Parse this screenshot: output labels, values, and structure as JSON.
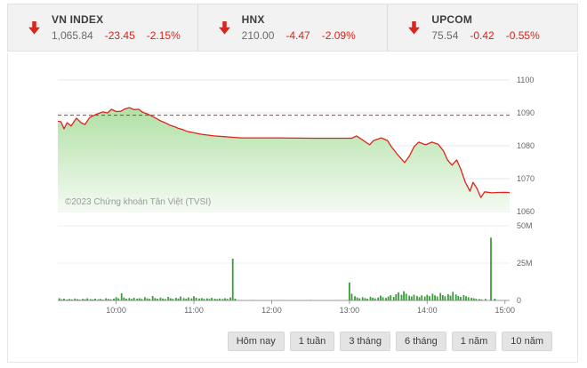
{
  "tickers": [
    {
      "name": "VN INDEX",
      "price": "1,065.84",
      "change": "-23.45",
      "percent": "-2.15%"
    },
    {
      "name": "HNX",
      "price": "210.00",
      "change": "-4.47",
      "percent": "-2.09%"
    },
    {
      "name": "UPCOM",
      "price": "75.54",
      "change": "-0.42",
      "percent": "-0.55%"
    }
  ],
  "colors": {
    "arrow": "#d9251c",
    "negative_text": "#de2118",
    "price_line": "#e0231c",
    "volume_bar": "#3a9e3a",
    "header_bg": "#f2f2f3"
  },
  "timeframes": [
    "Hôm nay",
    "1 tuần",
    "3 tháng",
    "6 tháng",
    "1 năm",
    "10 năm"
  ],
  "chart_data": {
    "type": "area",
    "title": "",
    "watermark": "©2023 Chứng khoán Tân Việt (TVSI)",
    "xlim": [
      9.25,
      15.06
    ],
    "xticks": [
      {
        "t": 10,
        "label": "10:00"
      },
      {
        "t": 11,
        "label": "11:00"
      },
      {
        "t": 12,
        "label": "12:00"
      },
      {
        "t": 13,
        "label": "13:00"
      },
      {
        "t": 14,
        "label": "14:00"
      },
      {
        "t": 15,
        "label": "15:00"
      }
    ],
    "price": {
      "name": "VN INDEX",
      "prev_close": 1089.29,
      "last": 1065.84,
      "ylim": [
        1060,
        1100
      ],
      "yticks": [
        1100,
        1090,
        1080,
        1070,
        1060
      ],
      "line_color": "#e0231c",
      "fill_top": "#b0e0a6",
      "fill_bottom": "#f4fbf2",
      "points": [
        [
          9.25,
          1087.5
        ],
        [
          9.29,
          1087.3
        ],
        [
          9.33,
          1085.2
        ],
        [
          9.37,
          1087.0
        ],
        [
          9.42,
          1086.0
        ],
        [
          9.49,
          1088.4
        ],
        [
          9.55,
          1087.0
        ],
        [
          9.6,
          1086.5
        ],
        [
          9.66,
          1088.6
        ],
        [
          9.71,
          1089.2
        ],
        [
          9.77,
          1089.8
        ],
        [
          9.83,
          1090.3
        ],
        [
          9.89,
          1090.0
        ],
        [
          9.94,
          1091.1
        ],
        [
          10.0,
          1090.4
        ],
        [
          10.06,
          1090.5
        ],
        [
          10.11,
          1091.2
        ],
        [
          10.17,
          1091.6
        ],
        [
          10.23,
          1091.0
        ],
        [
          10.29,
          1091.1
        ],
        [
          10.34,
          1090.2
        ],
        [
          10.4,
          1089.7
        ],
        [
          10.46,
          1089.0
        ],
        [
          10.51,
          1088.4
        ],
        [
          10.57,
          1087.6
        ],
        [
          10.63,
          1087.0
        ],
        [
          10.69,
          1086.3
        ],
        [
          10.74,
          1085.9
        ],
        [
          10.8,
          1085.3
        ],
        [
          10.86,
          1084.9
        ],
        [
          10.91,
          1084.4
        ],
        [
          10.97,
          1084.1
        ],
        [
          11.09,
          1083.5
        ],
        [
          11.26,
          1083.0
        ],
        [
          11.43,
          1082.7
        ],
        [
          11.6,
          1082.4
        ],
        [
          12.06,
          1082.4
        ],
        [
          12.51,
          1082.3
        ],
        [
          13.03,
          1082.3
        ],
        [
          13.09,
          1083.0
        ],
        [
          13.18,
          1081.6
        ],
        [
          13.26,
          1080.3
        ],
        [
          13.31,
          1081.6
        ],
        [
          13.41,
          1082.4
        ],
        [
          13.49,
          1081.6
        ],
        [
          13.54,
          1079.7
        ],
        [
          13.63,
          1077.0
        ],
        [
          13.71,
          1074.9
        ],
        [
          13.77,
          1076.8
        ],
        [
          13.83,
          1079.7
        ],
        [
          13.89,
          1081.1
        ],
        [
          13.98,
          1080.3
        ],
        [
          14.06,
          1081.1
        ],
        [
          14.14,
          1080.5
        ],
        [
          14.21,
          1078.4
        ],
        [
          14.26,
          1075.7
        ],
        [
          14.32,
          1074.1
        ],
        [
          14.38,
          1075.7
        ],
        [
          14.43,
          1073.0
        ],
        [
          14.49,
          1068.9
        ],
        [
          14.55,
          1066.2
        ],
        [
          14.59,
          1068.9
        ],
        [
          14.64,
          1067.0
        ],
        [
          14.69,
          1064.3
        ],
        [
          14.74,
          1066.0
        ],
        [
          14.83,
          1065.7
        ],
        [
          14.91,
          1065.8
        ],
        [
          15.0,
          1065.84
        ],
        [
          15.06,
          1065.8
        ]
      ]
    },
    "volume": {
      "unit": "M",
      "ylim": [
        0,
        50
      ],
      "yticks": [
        {
          "value": 50,
          "label": "50M"
        },
        {
          "value": 25,
          "label": "25M"
        },
        {
          "value": 0,
          "label": "0"
        }
      ],
      "color": "#3a9e3a",
      "bars": [
        [
          9.27,
          1.5
        ],
        [
          9.3,
          0.8
        ],
        [
          9.33,
          1.2
        ],
        [
          9.37,
          0.6
        ],
        [
          9.4,
          1.0
        ],
        [
          9.43,
          0.7
        ],
        [
          9.47,
          1.3
        ],
        [
          9.5,
          0.9
        ],
        [
          9.53,
          0.6
        ],
        [
          9.57,
          1.1
        ],
        [
          9.6,
          0.8
        ],
        [
          9.63,
          1.4
        ],
        [
          9.67,
          0.9
        ],
        [
          9.7,
          0.7
        ],
        [
          9.73,
          1.2
        ],
        [
          9.77,
          0.8
        ],
        [
          9.8,
          1.0
        ],
        [
          9.83,
          0.6
        ],
        [
          9.87,
          1.5
        ],
        [
          9.9,
          1.0
        ],
        [
          9.93,
          0.8
        ],
        [
          9.97,
          1.2
        ],
        [
          10.0,
          2.2
        ],
        [
          10.03,
          1.4
        ],
        [
          10.07,
          4.8
        ],
        [
          10.1,
          2.0
        ],
        [
          10.13,
          1.2
        ],
        [
          10.17,
          1.6
        ],
        [
          10.2,
          1.0
        ],
        [
          10.23,
          1.8
        ],
        [
          10.27,
          1.2
        ],
        [
          10.3,
          1.5
        ],
        [
          10.33,
          1.0
        ],
        [
          10.37,
          2.2
        ],
        [
          10.4,
          1.4
        ],
        [
          10.43,
          1.1
        ],
        [
          10.47,
          3.0
        ],
        [
          10.5,
          1.6
        ],
        [
          10.53,
          1.2
        ],
        [
          10.57,
          1.9
        ],
        [
          10.6,
          1.3
        ],
        [
          10.63,
          1.0
        ],
        [
          10.67,
          2.4
        ],
        [
          10.7,
          1.5
        ],
        [
          10.73,
          1.1
        ],
        [
          10.77,
          1.8
        ],
        [
          10.8,
          1.3
        ],
        [
          10.83,
          2.6
        ],
        [
          10.87,
          1.6
        ],
        [
          10.9,
          1.2
        ],
        [
          10.93,
          2.0
        ],
        [
          10.97,
          1.4
        ],
        [
          11.0,
          2.8
        ],
        [
          11.03,
          1.8
        ],
        [
          11.07,
          1.3
        ],
        [
          11.1,
          1.6
        ],
        [
          11.13,
          1.1
        ],
        [
          11.17,
          1.4
        ],
        [
          11.2,
          1.0
        ],
        [
          11.23,
          1.7
        ],
        [
          11.27,
          1.2
        ],
        [
          11.3,
          0.9
        ],
        [
          11.33,
          1.3
        ],
        [
          11.37,
          1.0
        ],
        [
          11.4,
          1.5
        ],
        [
          11.43,
          1.1
        ],
        [
          11.47,
          2.0
        ],
        [
          11.5,
          28.0
        ],
        [
          11.53,
          1.2
        ],
        [
          11.75,
          0.3
        ],
        [
          12.1,
          0.2
        ],
        [
          12.5,
          0.3
        ],
        [
          12.9,
          0.2
        ],
        [
          13.0,
          12.0
        ],
        [
          13.03,
          4.5
        ],
        [
          13.07,
          2.8
        ],
        [
          13.1,
          2.0
        ],
        [
          13.13,
          1.5
        ],
        [
          13.17,
          2.2
        ],
        [
          13.2,
          1.6
        ],
        [
          13.23,
          1.2
        ],
        [
          13.27,
          2.5
        ],
        [
          13.3,
          1.8
        ],
        [
          13.33,
          1.4
        ],
        [
          13.37,
          2.0
        ],
        [
          13.4,
          3.2
        ],
        [
          13.43,
          2.2
        ],
        [
          13.47,
          1.7
        ],
        [
          13.5,
          2.6
        ],
        [
          13.53,
          3.5
        ],
        [
          13.57,
          2.4
        ],
        [
          13.6,
          4.2
        ],
        [
          13.63,
          5.5
        ],
        [
          13.67,
          3.8
        ],
        [
          13.7,
          6.2
        ],
        [
          13.73,
          4.5
        ],
        [
          13.77,
          3.2
        ],
        [
          13.8,
          2.6
        ],
        [
          13.83,
          3.8
        ],
        [
          13.87,
          2.9
        ],
        [
          13.9,
          2.2
        ],
        [
          13.93,
          3.4
        ],
        [
          13.97,
          2.6
        ],
        [
          14.0,
          3.8
        ],
        [
          14.03,
          2.9
        ],
        [
          14.07,
          4.5
        ],
        [
          14.1,
          3.4
        ],
        [
          14.13,
          2.7
        ],
        [
          14.17,
          5.0
        ],
        [
          14.2,
          3.6
        ],
        [
          14.23,
          2.8
        ],
        [
          14.27,
          4.2
        ],
        [
          14.3,
          3.2
        ],
        [
          14.33,
          5.8
        ],
        [
          14.37,
          4.0
        ],
        [
          14.4,
          3.0
        ],
        [
          14.43,
          2.4
        ],
        [
          14.47,
          3.6
        ],
        [
          14.5,
          2.8
        ],
        [
          14.53,
          2.2
        ],
        [
          14.57,
          1.8
        ],
        [
          14.6,
          1.4
        ],
        [
          14.63,
          1.1
        ],
        [
          14.67,
          0.9
        ],
        [
          14.7,
          0.7
        ],
        [
          14.75,
          1.0
        ],
        [
          14.82,
          42.0
        ],
        [
          14.87,
          1.2
        ]
      ]
    }
  }
}
